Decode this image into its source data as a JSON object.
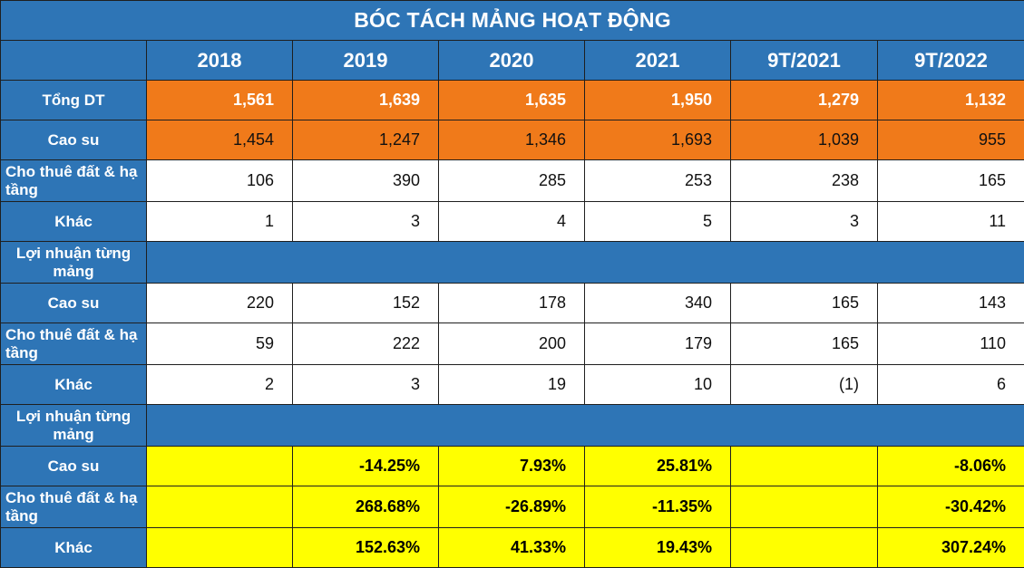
{
  "title": "BÓC TÁCH MẢNG HOẠT ĐỘNG",
  "columns": [
    "2018",
    "2019",
    "2020",
    "2021",
    "9T/2021",
    "9T/2022"
  ],
  "rows": [
    {
      "label": "Tổng DT",
      "values": [
        "1,561",
        "1,639",
        "1,635",
        "1,950",
        "1,279",
        "1,132"
      ]
    },
    {
      "label": "Cao su",
      "values": [
        "1,454",
        "1,247",
        "1,346",
        "1,693",
        "1,039",
        "955"
      ]
    },
    {
      "label": "Cho thuê đất & hạ tầng",
      "values": [
        "106",
        "390",
        "285",
        "253",
        "238",
        "165"
      ]
    },
    {
      "label": "Khác",
      "values": [
        "1",
        "3",
        "4",
        "5",
        "3",
        "11"
      ]
    },
    {
      "label": "Lợi nhuận từng mảng"
    },
    {
      "label": "Cao su",
      "values": [
        "220",
        "152",
        "178",
        "340",
        "165",
        "143"
      ]
    },
    {
      "label": "Cho thuê đất & hạ tầng",
      "values": [
        "59",
        "222",
        "200",
        "179",
        "165",
        "110"
      ]
    },
    {
      "label": "Khác",
      "values": [
        "2",
        "3",
        "19",
        "10",
        "(1)",
        "6"
      ]
    },
    {
      "label": "Lợi nhuận từng mảng"
    },
    {
      "label": "Cao su",
      "values": [
        "",
        "-14.25%",
        "7.93%",
        "25.81%",
        "",
        "-8.06%"
      ]
    },
    {
      "label": "Cho thuê đất & hạ tầng",
      "values": [
        "",
        "268.68%",
        "-26.89%",
        "-11.35%",
        "",
        "-30.42%"
      ]
    },
    {
      "label": "Khác",
      "values": [
        "",
        "152.63%",
        "41.33%",
        "19.43%",
        "",
        "307.24%"
      ]
    }
  ],
  "colors": {
    "header_blue": "#2e75b6",
    "orange": "#f07a1a",
    "yellow": "#ffff00"
  }
}
